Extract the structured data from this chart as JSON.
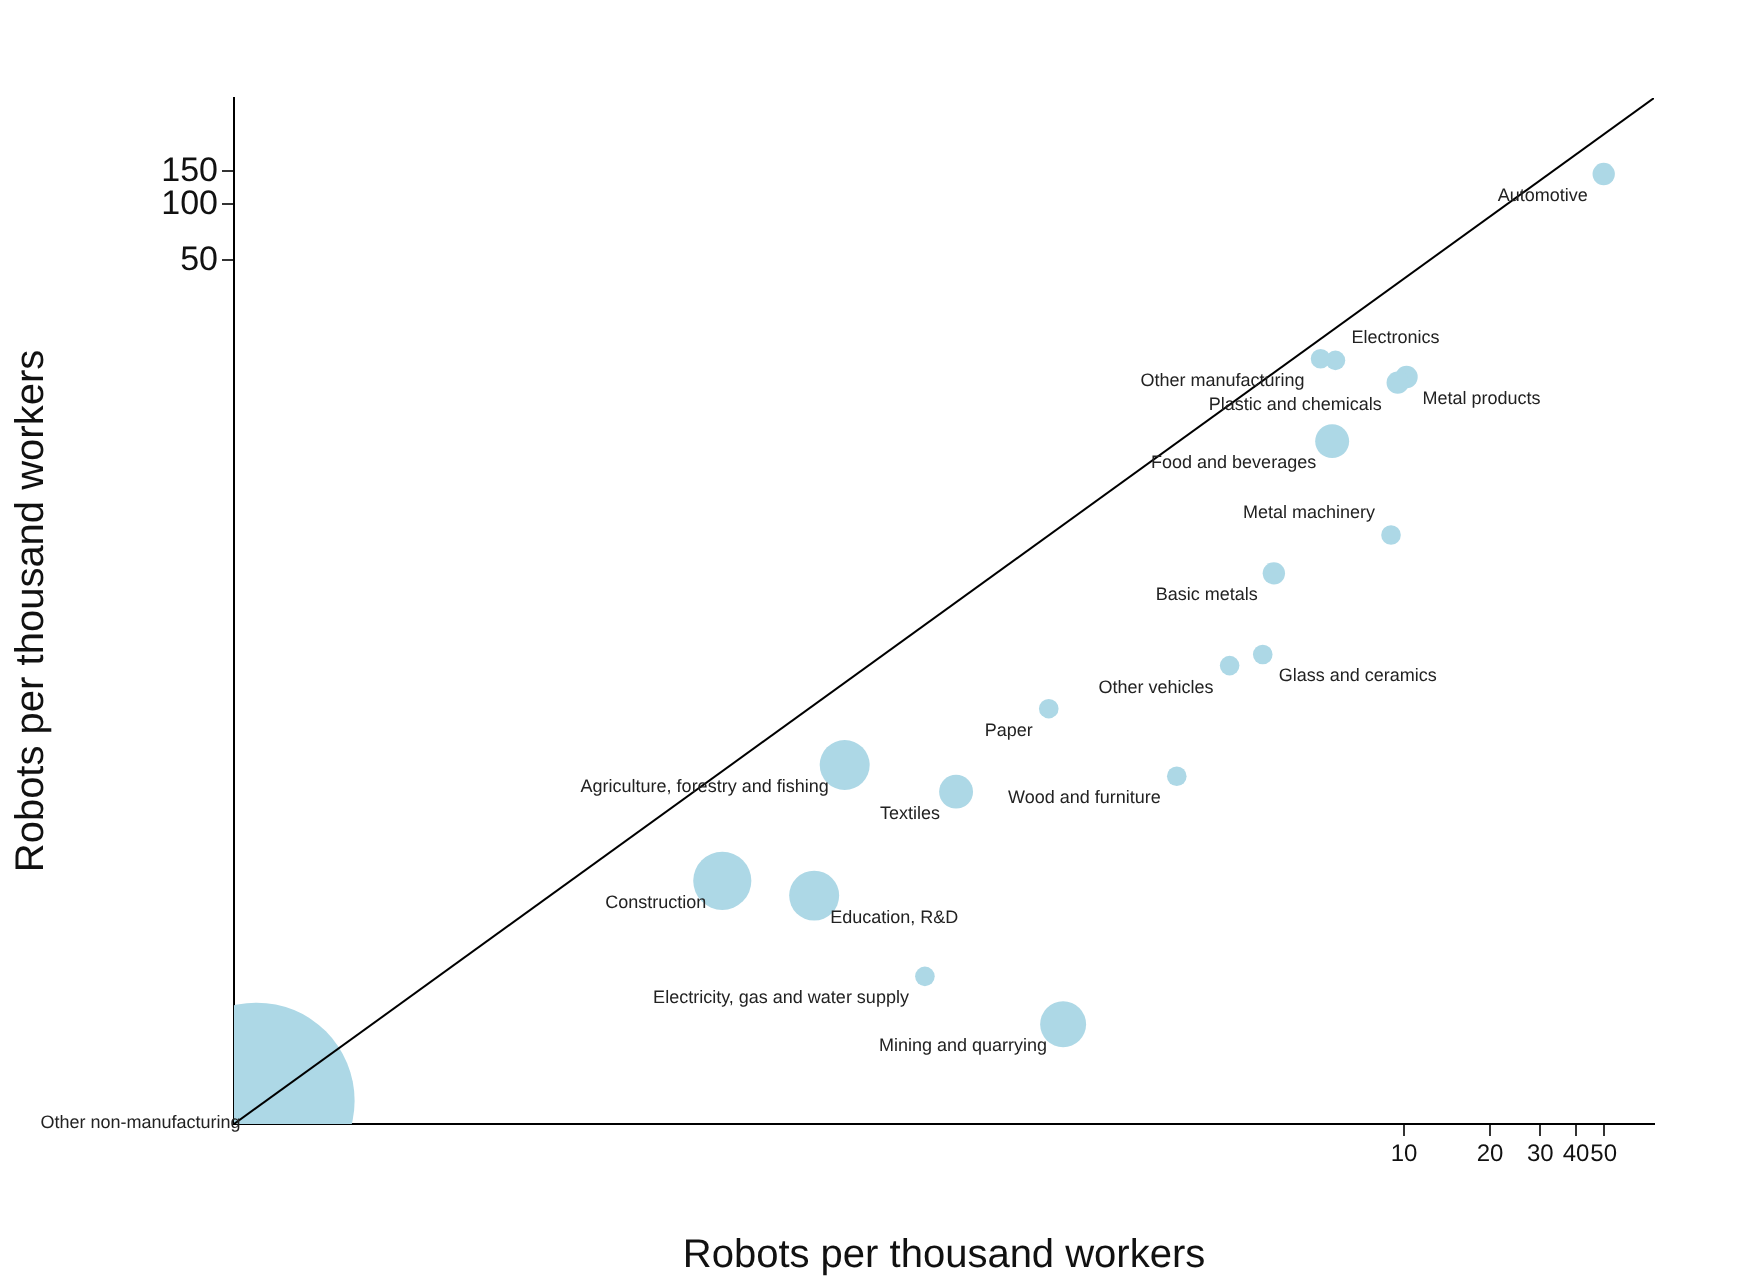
{
  "chart_data": {
    "type": "bubble",
    "xlabel": "Robots per thousand workers",
    "ylabel": "Robots per thousand workers",
    "log": "xy",
    "grid": false,
    "legend": false,
    "xlim": [
      0.0008,
      75
    ],
    "ylim": [
      0.0012,
      370
    ],
    "xticks": [
      10,
      20,
      30,
      40,
      50
    ],
    "yticks": [
      50,
      100,
      150
    ],
    "series": [
      {
        "name": "Automotive",
        "color": "#add8e6",
        "x": [
          50
        ],
        "values": [
          145
        ],
        "sizes": [
          0.013
        ]
      },
      {
        "name": "Other manufacturing",
        "color": "#add8e6",
        "x": [
          5.1
        ],
        "values": [
          14.9
        ],
        "sizes": [
          0.01
        ]
      },
      {
        "name": "Electronics",
        "color": "#add8e6",
        "x": [
          5.75
        ],
        "values": [
          14.6
        ],
        "sizes": [
          0.01
        ]
      },
      {
        "name": "Plastic and chemicals",
        "color": "#add8e6",
        "x": [
          9.5
        ],
        "values": [
          11.1
        ],
        "sizes": [
          0.013
        ]
      },
      {
        "name": "Metal products",
        "color": "#add8e6",
        "x": [
          10.2
        ],
        "values": [
          11.9
        ],
        "sizes": [
          0.013
        ]
      },
      {
        "name": "Food and beverages",
        "color": "#add8e6",
        "x": [
          5.6
        ],
        "values": [
          5.4
        ],
        "sizes": [
          0.03
        ]
      },
      {
        "name": "Metal machinery",
        "color": "#add8e6",
        "x": [
          9
        ],
        "values": [
          1.7
        ],
        "sizes": [
          0.01
        ]
      },
      {
        "name": "Basic metals",
        "color": "#add8e6",
        "x": [
          3.5
        ],
        "values": [
          1.06
        ],
        "sizes": [
          0.013
        ]
      },
      {
        "name": "Glass and ceramics",
        "color": "#add8e6",
        "x": [
          3.2
        ],
        "values": [
          0.39
        ],
        "sizes": [
          0.01
        ]
      },
      {
        "name": "Other vehicles",
        "color": "#add8e6",
        "x": [
          2.45
        ],
        "values": [
          0.34
        ],
        "sizes": [
          0.01
        ]
      },
      {
        "name": "Paper",
        "color": "#add8e6",
        "x": [
          0.57
        ],
        "values": [
          0.2
        ],
        "sizes": [
          0.01
        ]
      },
      {
        "name": "Wood and furniture",
        "color": "#add8e6",
        "x": [
          1.6
        ],
        "values": [
          0.087
        ],
        "sizes": [
          0.01
        ]
      },
      {
        "name": "Agriculture, forestry and fishing",
        "color": "#add8e6",
        "x": [
          0.11
        ],
        "values": [
          0.1
        ],
        "sizes": [
          0.065
        ]
      },
      {
        "name": "Textiles",
        "color": "#add8e6",
        "x": [
          0.27
        ],
        "values": [
          0.072
        ],
        "sizes": [
          0.03
        ]
      },
      {
        "name": "Construction",
        "color": "#add8e6",
        "x": [
          0.041
        ],
        "values": [
          0.024
        ],
        "sizes": [
          0.088
        ]
      },
      {
        "name": "Education, R&D",
        "color": "#add8e6",
        "x": [
          0.086
        ],
        "values": [
          0.02
        ],
        "sizes": [
          0.065
        ]
      },
      {
        "name": "Electricity, gas and water supply",
        "color": "#add8e6",
        "x": [
          0.21
        ],
        "values": [
          0.0074
        ],
        "sizes": [
          0.01
        ]
      },
      {
        "name": "Mining and quarrying",
        "color": "#add8e6",
        "x": [
          0.64
        ],
        "values": [
          0.0041
        ],
        "sizes": [
          0.055
        ]
      },
      {
        "name": "Other non-manufacturing",
        "color": "#add8e6",
        "x": [
          0.00096
        ],
        "values": [
          0.0016
        ],
        "sizes": [
          1
        ]
      },
      {
        "type": "line",
        "color": "#000000",
        "x": [
          0.0008,
          75
        ],
        "values": [
          0.0012,
          370
        ]
      }
    ]
  }
}
